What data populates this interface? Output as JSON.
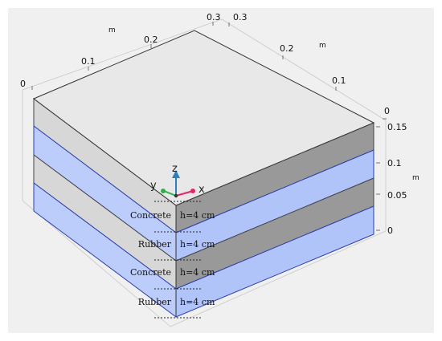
{
  "colors": {
    "concrete_top": "#e8e8e8",
    "concrete_left": "#d7d7d7",
    "concrete_right": "#999999",
    "rubber_left": "#bdcdfb",
    "rubber_right": "#b1c4fa",
    "rubber_edge": "#2b3fb0",
    "x_axis": "#e8246a",
    "y_axis": "#29b04a",
    "z_axis": "#2a7fbf"
  },
  "left_axis": {
    "unit": "m",
    "ticks": [
      "0",
      "0.1",
      "0.2",
      "0.3"
    ]
  },
  "right_axis": {
    "unit": "m",
    "ticks": [
      "0.3",
      "0.2",
      "0.1",
      "0"
    ]
  },
  "vertical_axis": {
    "unit": "m",
    "ticks": [
      "0.15",
      "0.1",
      "0.05",
      "0"
    ]
  },
  "triad": {
    "x": "x",
    "y": "y",
    "z": "z"
  },
  "layers": [
    {
      "material": "Concrete",
      "thickness": "h=4 cm"
    },
    {
      "material": "Rubber",
      "thickness": "h=4 cm"
    },
    {
      "material": "Concrete",
      "thickness": "h=4 cm"
    },
    {
      "material": "Rubber",
      "thickness": "h=4 cm"
    }
  ]
}
